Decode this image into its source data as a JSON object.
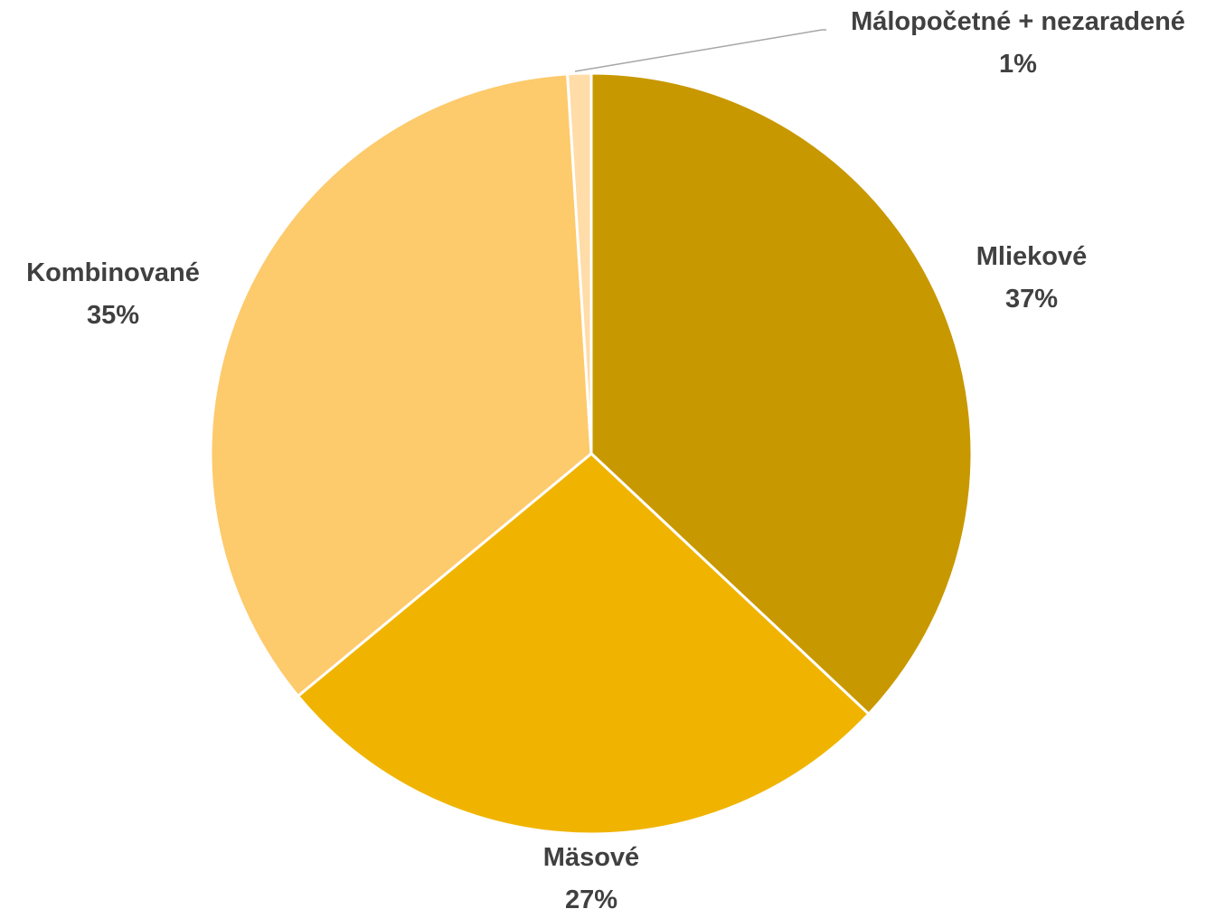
{
  "chart_data": {
    "type": "pie",
    "title": "",
    "slices": [
      {
        "label": "Mliekové",
        "value": 37,
        "display": "37%",
        "color": "#C89800"
      },
      {
        "label": "Mäsové",
        "value": 27,
        "display": "27%",
        "color": "#F0B400"
      },
      {
        "label": "Kombinované",
        "value": 35,
        "display": "35%",
        "color": "#FDCA6C"
      },
      {
        "label": "Málopočetné + nezaradené",
        "value": 1,
        "display": "1%",
        "color": "#FFDCA8"
      }
    ],
    "start_angle_deg": 0,
    "direction": "clockwise",
    "legend": "none"
  }
}
